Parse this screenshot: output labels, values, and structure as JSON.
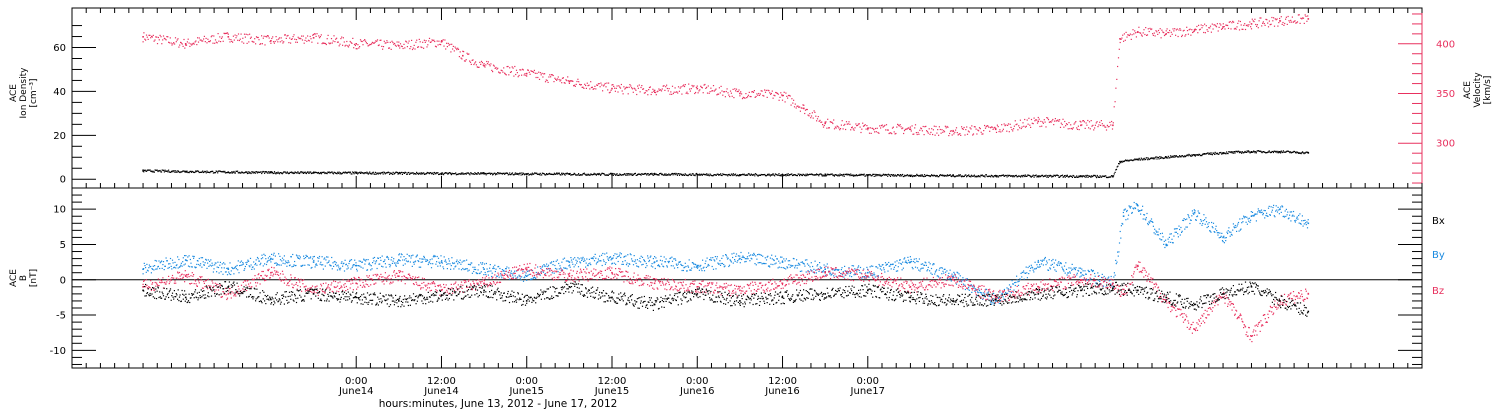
{
  "chart_data": [
    {
      "type": "scatter",
      "panel": "top",
      "left_axis_label": [
        "ACE",
        "Ion Density",
        "[cm⁻³]"
      ],
      "right_axis_label": [
        "ACE",
        "Velocity",
        "[km/s]"
      ],
      "ylim_left": [
        -4,
        78
      ],
      "ylim_right": [
        255,
        436
      ],
      "left_ticks": [
        0,
        20,
        40,
        60
      ],
      "right_ticks": [
        300,
        350,
        400
      ],
      "grid": false,
      "series": [
        {
          "name": "",
          "axis": "left",
          "color": "#000000",
          "points": [
            [
              -30,
              3.8
            ],
            [
              -24,
              3.5
            ],
            [
              -18,
              3.2
            ],
            [
              -12,
              3.0
            ],
            [
              -6,
              2.9
            ],
            [
              0,
              2.8
            ],
            [
              6,
              2.7
            ],
            [
              12,
              2.6
            ],
            [
              18,
              2.5
            ],
            [
              24,
              2.4
            ],
            [
              30,
              2.3
            ],
            [
              36,
              2.2
            ],
            [
              42,
              2.2
            ],
            [
              48,
              2.1
            ],
            [
              54,
              2.0
            ],
            [
              60,
              2.0
            ],
            [
              66,
              1.9
            ],
            [
              72,
              1.8
            ],
            [
              78,
              1.7
            ],
            [
              84,
              1.6
            ],
            [
              90,
              1.5
            ],
            [
              96,
              1.4
            ],
            [
              102,
              1.3
            ],
            [
              106.5,
              1.2
            ],
            [
              107.5,
              8.0
            ],
            [
              110,
              9.0
            ],
            [
              114,
              10.0
            ],
            [
              118,
              11.0
            ],
            [
              122,
              12.0
            ],
            [
              126,
              12.5
            ],
            [
              130,
              12.5
            ],
            [
              134,
              12.0
            ]
          ]
        },
        {
          "name": "",
          "axis": "right",
          "color": "#e8305e",
          "points": [
            [
              -30,
              407
            ],
            [
              -24,
              400
            ],
            [
              -18,
              407
            ],
            [
              -12,
              403
            ],
            [
              -6,
              406
            ],
            [
              0,
              400
            ],
            [
              6,
              398
            ],
            [
              12,
              402
            ],
            [
              15,
              388
            ],
            [
              18,
              378
            ],
            [
              24,
              370
            ],
            [
              30,
              362
            ],
            [
              36,
              355
            ],
            [
              42,
              353
            ],
            [
              48,
              355
            ],
            [
              54,
              350
            ],
            [
              60,
              348
            ],
            [
              63,
              335
            ],
            [
              66,
              320
            ],
            [
              72,
              315
            ],
            [
              78,
              314
            ],
            [
              84,
              312
            ],
            [
              90,
              314
            ],
            [
              96,
              322
            ],
            [
              102,
              318
            ],
            [
              106.5,
              318
            ],
            [
              107.5,
              405
            ],
            [
              110,
              412
            ],
            [
              114,
              410
            ],
            [
              118,
              414
            ],
            [
              122,
              417
            ],
            [
              126,
              420
            ],
            [
              130,
              423
            ],
            [
              134,
              425
            ]
          ]
        }
      ]
    },
    {
      "type": "scatter",
      "panel": "bottom",
      "left_axis_label": [
        "ACE",
        "B",
        "[nT]"
      ],
      "ylim": [
        -12.5,
        13
      ],
      "left_ticks": [
        -10,
        -5,
        0,
        5,
        10
      ],
      "zero_line": true,
      "grid": false,
      "legend": [
        "Bx",
        "By",
        "Bz"
      ],
      "legend_placement": "right",
      "series": [
        {
          "name": "Bx",
          "color": "#000000",
          "points": [
            [
              -30,
              -1.5
            ],
            [
              -24,
              -2.5
            ],
            [
              -18,
              -1.0
            ],
            [
              -12,
              -2.8
            ],
            [
              -6,
              -2.0
            ],
            [
              0,
              -2.5
            ],
            [
              6,
              -3.0
            ],
            [
              12,
              -2.2
            ],
            [
              18,
              -1.5
            ],
            [
              24,
              -3.0
            ],
            [
              30,
              -1.0
            ],
            [
              36,
              -2.5
            ],
            [
              42,
              -3.5
            ],
            [
              48,
              -2.0
            ],
            [
              54,
              -3.0
            ],
            [
              60,
              -2.5
            ],
            [
              66,
              -2.0
            ],
            [
              72,
              -1.5
            ],
            [
              78,
              -2.5
            ],
            [
              84,
              -3.0
            ],
            [
              90,
              -2.8
            ],
            [
              96,
              -2.0
            ],
            [
              102,
              -1.5
            ],
            [
              106.5,
              -1.2
            ],
            [
              110,
              -1.5
            ],
            [
              114,
              -2.5
            ],
            [
              118,
              -3.5
            ],
            [
              122,
              -2.0
            ],
            [
              126,
              -1.0
            ],
            [
              130,
              -3.0
            ],
            [
              134,
              -4.5
            ]
          ]
        },
        {
          "name": "By",
          "color": "#1a8ae0",
          "points": [
            [
              -30,
              1.5
            ],
            [
              -24,
              2.8
            ],
            [
              -18,
              1.5
            ],
            [
              -12,
              3.0
            ],
            [
              -6,
              2.5
            ],
            [
              0,
              2.0
            ],
            [
              6,
              2.8
            ],
            [
              12,
              2.5
            ],
            [
              18,
              1.5
            ],
            [
              24,
              0.5
            ],
            [
              30,
              2.5
            ],
            [
              36,
              3.0
            ],
            [
              42,
              2.5
            ],
            [
              48,
              2.0
            ],
            [
              54,
              3.0
            ],
            [
              60,
              2.5
            ],
            [
              66,
              1.5
            ],
            [
              72,
              1.0
            ],
            [
              78,
              2.5
            ],
            [
              84,
              0.5
            ],
            [
              90,
              -3.0
            ],
            [
              96,
              2.5
            ],
            [
              102,
              1.0
            ],
            [
              106.5,
              -0.5
            ],
            [
              108,
              9.0
            ],
            [
              110,
              10.5
            ],
            [
              114,
              5.0
            ],
            [
              118,
              9.5
            ],
            [
              122,
              6.0
            ],
            [
              126,
              9.0
            ],
            [
              130,
              10.0
            ],
            [
              134,
              8.0
            ]
          ]
        },
        {
          "name": "Bz",
          "color": "#e8305e",
          "points": [
            [
              -30,
              -1.0
            ],
            [
              -24,
              0.5
            ],
            [
              -18,
              -2.0
            ],
            [
              -12,
              1.0
            ],
            [
              -6,
              -1.5
            ],
            [
              0,
              -0.5
            ],
            [
              6,
              0.5
            ],
            [
              12,
              -1.5
            ],
            [
              18,
              -0.5
            ],
            [
              24,
              1.5
            ],
            [
              30,
              0.5
            ],
            [
              36,
              1.0
            ],
            [
              42,
              -0.5
            ],
            [
              48,
              -1.0
            ],
            [
              54,
              -1.5
            ],
            [
              60,
              -0.5
            ],
            [
              66,
              1.0
            ],
            [
              72,
              0.5
            ],
            [
              78,
              -1.0
            ],
            [
              84,
              0.0
            ],
            [
              90,
              -2.5
            ],
            [
              96,
              -1.0
            ],
            [
              102,
              0.0
            ],
            [
              106.5,
              -0.5
            ],
            [
              108,
              -2.0
            ],
            [
              110,
              2.0
            ],
            [
              114,
              -3.0
            ],
            [
              118,
              -7.0
            ],
            [
              122,
              -2.0
            ],
            [
              126,
              -8.0
            ],
            [
              130,
              -3.0
            ],
            [
              134,
              -2.0
            ]
          ]
        }
      ]
    }
  ],
  "x_axis": {
    "label": "hours:minutes, June 13, 2012 - June 17, 2012",
    "xlim": [
      -40,
      150
    ],
    "major_ticks": [
      {
        "hour": 0,
        "time": "0:00",
        "date": "June14"
      },
      {
        "hour": 12,
        "time": "12:00",
        "date": "June14"
      },
      {
        "hour": 24,
        "time": "0:00",
        "date": "June15"
      },
      {
        "hour": 36,
        "time": "12:00",
        "date": "June15"
      },
      {
        "hour": 48,
        "time": "0:00",
        "date": "June16"
      },
      {
        "hour": 60,
        "time": "12:00",
        "date": "June16"
      },
      {
        "hour": 72,
        "time": "0:00",
        "date": "June17"
      }
    ]
  },
  "colors": {
    "density": "#000000",
    "velocity": "#e8305e",
    "bx": "#000000",
    "by": "#1a8ae0",
    "bz": "#e8305e",
    "axis": "#000000"
  }
}
